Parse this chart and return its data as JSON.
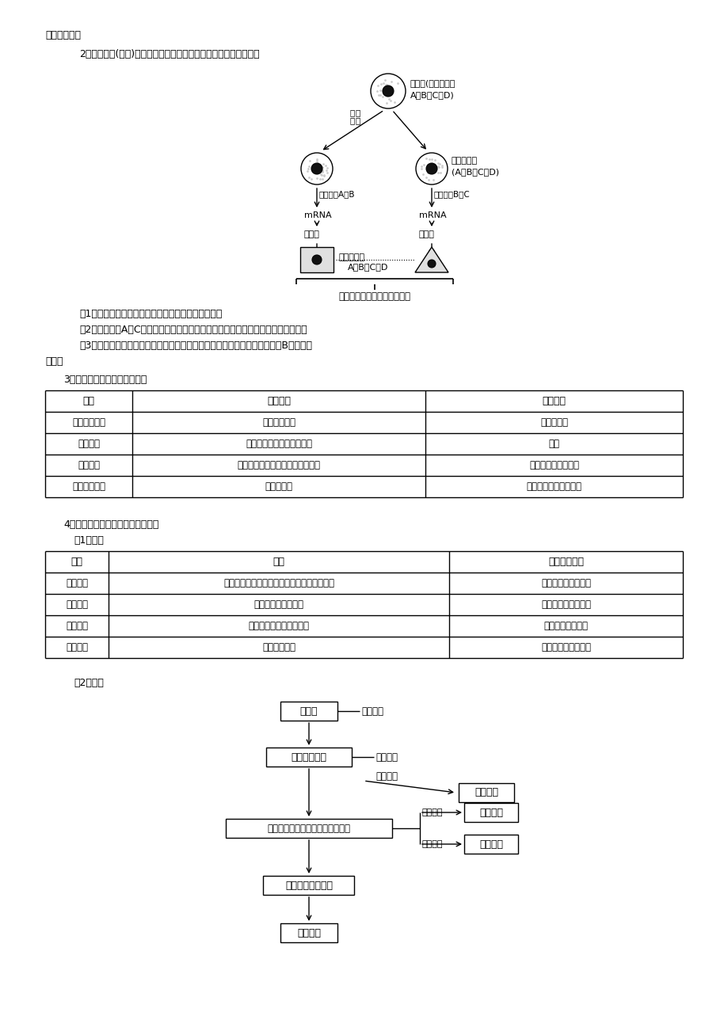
{
  "bg_color": "#ffffff",
  "text_color": "#000000",
  "table1_headers": [
    "项目",
    "细胞凋亡",
    "细胞坏死"
  ],
  "table1_rows": [
    [
      "与基因的关系",
      "是基因控制的",
      "无直接关系"
    ],
    [
      "形态变化",
      "细胞变圆，与周围细胞脱离",
      "塌陷"
    ],
    [
      "影响因素",
      "受严格的由基因决定的程序性调控",
      "受到急性强力伤害时"
    ],
    [
      "对机体的影响",
      "对机体有利",
      "对机体有害，炎症反应"
    ]
  ],
  "table2_headers": [
    "项目",
    "结果",
    "遗传物质变化"
  ],
  "table2_rows": [
    [
      "细胞分裂",
      "单细胞生物完成生殖，多细胞生物产生新细胞",
      "遗传物质复制后均分"
    ],
    [
      "细胞分化",
      "可形成不同组织器官",
      "遗传物质不发生改变"
    ],
    [
      "细胞癌变",
      "形成能无限增殖的癌细胞",
      "遗传物质发生改变"
    ],
    [
      "细胞衰老",
      "细胞正常死亡",
      "遗传物质不发生改变"
    ]
  ]
}
